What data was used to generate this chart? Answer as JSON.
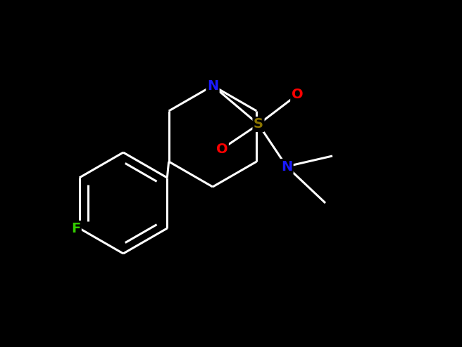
{
  "background_color": "#000000",
  "bond_color": "#ffffff",
  "atom_colors": {
    "N": "#1a1aff",
    "O": "#ff0000",
    "S": "#8b7500",
    "F": "#33cc00",
    "C": "#ffffff"
  },
  "bond_width": 2.2,
  "figsize": [
    6.56,
    4.94
  ],
  "dpi": 100
}
